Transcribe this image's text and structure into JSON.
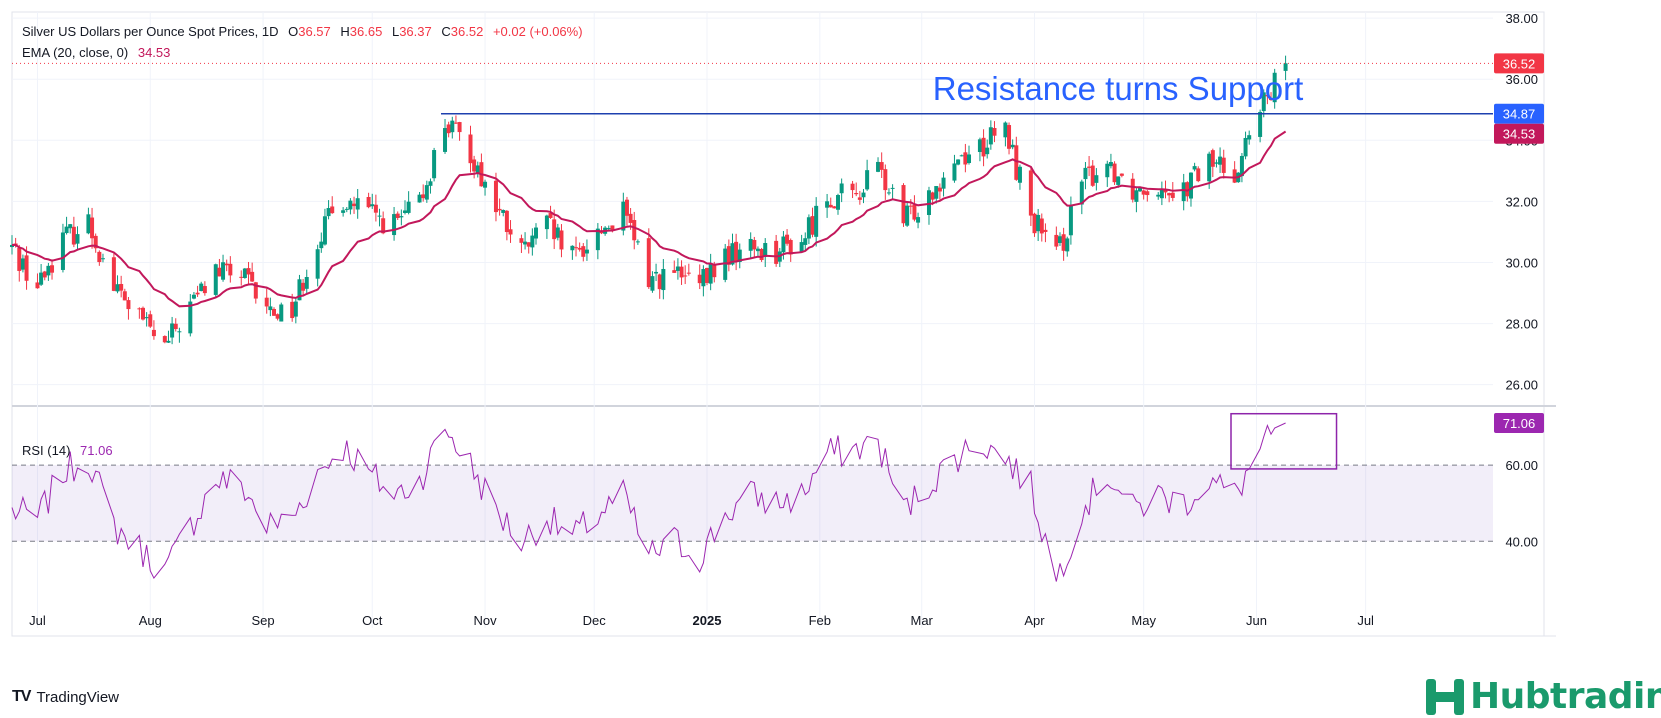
{
  "header": {
    "symbol_title": "Silver US Dollars per Ounce Spot Prices, 1D",
    "o_label": "O",
    "o_value": "36.57",
    "h_label": "H",
    "h_value": "36.65",
    "l_label": "L",
    "l_value": "36.37",
    "c_label": "C",
    "c_value": "36.52",
    "change": "+0.02 (+0.06%)",
    "ema_label": "EMA (20, close, 0)",
    "ema_value": "34.53",
    "rsi_label": "RSI (14)",
    "rsi_value": "71.06"
  },
  "annotation_text": "Resistance turns Support",
  "footer": {
    "tradingview": "TradingView",
    "brand": "Hubtrading"
  },
  "colors": {
    "up": "#089981",
    "down": "#f23645",
    "ema": "#c2185b",
    "rsi": "#9c27b0",
    "resistance": "#1e40af",
    "annotation": "#2962ff",
    "brand": "#1a9a6c"
  },
  "chart_data": [
    {
      "type": "candlestick",
      "title": "Silver US Dollars per Ounce Spot Prices, 1D",
      "y_axis_side": "right",
      "ylim": [
        25.4,
        38.2
      ],
      "y_ticks": [
        "26.00",
        "28.00",
        "30.00",
        "32.00",
        "34.00",
        "36.00",
        "38.00"
      ],
      "x_ticks": [
        "Jul",
        "Aug",
        "Sep",
        "Oct",
        "Nov",
        "Dec",
        "2025",
        "Feb",
        "Mar",
        "Apr",
        "May",
        "Jun",
        "Jul"
      ],
      "last_price": 36.52,
      "price_labels": [
        {
          "text": "36.52",
          "color": "#f23645"
        },
        {
          "text": "34.87",
          "color": "#2962ff"
        },
        {
          "text": "34.53",
          "color": "#c2185b"
        }
      ],
      "resistance_level": 34.87,
      "anchors": [
        [
          "2024-06-24",
          30.5
        ],
        [
          "2024-07-01",
          29.2
        ],
        [
          "2024-07-08",
          30.8
        ],
        [
          "2024-07-15",
          31.3
        ],
        [
          "2024-07-22",
          29.2
        ],
        [
          "2024-07-29",
          28.2
        ],
        [
          "2024-08-05",
          27.2
        ],
        [
          "2024-08-12",
          28.6
        ],
        [
          "2024-08-19",
          29.7
        ],
        [
          "2024-08-26",
          29.6
        ],
        [
          "2024-09-02",
          28.4
        ],
        [
          "2024-09-09",
          28.5
        ],
        [
          "2024-09-16",
          30.8
        ],
        [
          "2024-09-23",
          32.1
        ],
        [
          "2024-09-30",
          31.6
        ],
        [
          "2024-10-07",
          31.2
        ],
        [
          "2024-10-14",
          31.9
        ],
        [
          "2024-10-21",
          34.6
        ],
        [
          "2024-10-28",
          33.6
        ],
        [
          "2024-11-04",
          31.8
        ],
        [
          "2024-11-11",
          30.3
        ],
        [
          "2024-11-18",
          31.2
        ],
        [
          "2024-11-25",
          30.1
        ],
        [
          "2024-12-02",
          31.0
        ],
        [
          "2024-12-09",
          31.6
        ],
        [
          "2024-12-16",
          29.5
        ],
        [
          "2024-12-23",
          29.6
        ],
        [
          "2024-12-30",
          29.2
        ],
        [
          "2025-01-06",
          30.2
        ],
        [
          "2025-01-13",
          30.5
        ],
        [
          "2025-01-20",
          30.4
        ],
        [
          "2025-01-27",
          30.7
        ],
        [
          "2025-02-03",
          32.2
        ],
        [
          "2025-02-10",
          32.1
        ],
        [
          "2025-02-17",
          33.1
        ],
        [
          "2025-02-24",
          31.3
        ],
        [
          "2025-03-03",
          32.3
        ],
        [
          "2025-03-10",
          33.4
        ],
        [
          "2025-03-17",
          33.8
        ],
        [
          "2025-03-24",
          34.3
        ],
        [
          "2025-03-31",
          31.6
        ],
        [
          "2025-04-07",
          30.1
        ],
        [
          "2025-04-14",
          32.6
        ],
        [
          "2025-04-21",
          33.3
        ],
        [
          "2025-04-28",
          32.4
        ],
        [
          "2025-05-05",
          32.6
        ],
        [
          "2025-05-12",
          32.4
        ],
        [
          "2025-05-19",
          33.3
        ],
        [
          "2025-05-26",
          33.0
        ],
        [
          "2025-06-02",
          34.9
        ],
        [
          "2025-06-09",
          36.5
        ]
      ]
    },
    {
      "type": "line",
      "title": "RSI (14)",
      "ylim": [
        23,
        75
      ],
      "y_ticks": [
        "40.00",
        "60.00"
      ],
      "bands": [
        40,
        60
      ],
      "last_value": 71.06,
      "anchors": [
        [
          "2024-06-24",
          48
        ],
        [
          "2024-07-01",
          46
        ],
        [
          "2024-07-08",
          58
        ],
        [
          "2024-07-15",
          62
        ],
        [
          "2024-07-22",
          44
        ],
        [
          "2024-07-29",
          38
        ],
        [
          "2024-08-05",
          32
        ],
        [
          "2024-08-12",
          44
        ],
        [
          "2024-08-19",
          56
        ],
        [
          "2024-08-26",
          55
        ],
        [
          "2024-09-02",
          44
        ],
        [
          "2024-09-09",
          46
        ],
        [
          "2024-09-16",
          58
        ],
        [
          "2024-09-23",
          65
        ],
        [
          "2024-09-30",
          58
        ],
        [
          "2024-10-07",
          52
        ],
        [
          "2024-10-14",
          56
        ],
        [
          "2024-10-21",
          70
        ],
        [
          "2024-10-28",
          60
        ],
        [
          "2024-11-04",
          48
        ],
        [
          "2024-11-11",
          40
        ],
        [
          "2024-11-18",
          46
        ],
        [
          "2024-11-25",
          41
        ],
        [
          "2024-12-02",
          47
        ],
        [
          "2024-12-09",
          52
        ],
        [
          "2024-12-16",
          36
        ],
        [
          "2024-12-23",
          40
        ],
        [
          "2024-12-30",
          36
        ],
        [
          "2025-01-06",
          47
        ],
        [
          "2025-01-13",
          52
        ],
        [
          "2025-01-20",
          50
        ],
        [
          "2025-01-27",
          52
        ],
        [
          "2025-02-03",
          63
        ],
        [
          "2025-02-10",
          64
        ],
        [
          "2025-02-17",
          66
        ],
        [
          "2025-02-24",
          48
        ],
        [
          "2025-03-03",
          55
        ],
        [
          "2025-03-10",
          62
        ],
        [
          "2025-03-17",
          66
        ],
        [
          "2025-03-24",
          62
        ],
        [
          "2025-03-31",
          54
        ],
        [
          "2025-04-07",
          30
        ],
        [
          "2025-04-14",
          48
        ],
        [
          "2025-04-21",
          58
        ],
        [
          "2025-04-28",
          48
        ],
        [
          "2025-05-05",
          52
        ],
        [
          "2025-05-12",
          50
        ],
        [
          "2025-05-19",
          56
        ],
        [
          "2025-05-26",
          52
        ],
        [
          "2025-06-02",
          64
        ],
        [
          "2025-06-09",
          71.06
        ]
      ]
    }
  ]
}
